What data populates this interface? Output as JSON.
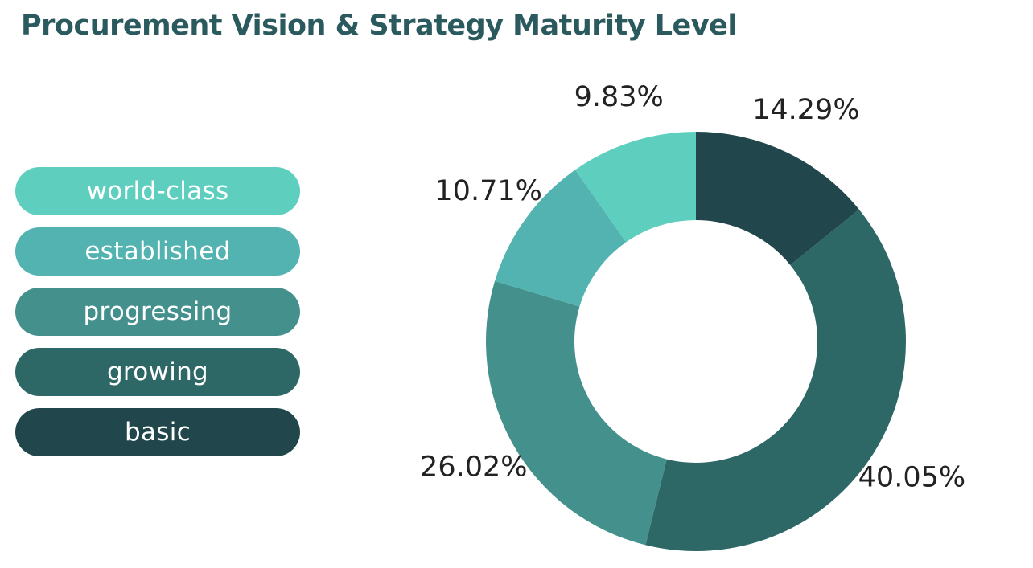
{
  "header": {
    "title": "Procurement Vision & Strategy Maturity Level"
  },
  "chart_data": {
    "type": "pie",
    "variant": "donut",
    "title": "Procurement Vision & Strategy Maturity Level",
    "legend_position": "left",
    "categories": [
      "world-class",
      "established",
      "progressing",
      "growing",
      "basic"
    ],
    "values": [
      9.83,
      10.71,
      26.02,
      40.05,
      14.29
    ],
    "labels": [
      "9.83%",
      "10.71%",
      "26.02%",
      "40.05%",
      "14.29%"
    ],
    "colors": [
      "#5ecfbf",
      "#52b3b1",
      "#43908d",
      "#2d6867",
      "#21474c"
    ],
    "slice_order_clockwise_from_top": [
      "basic",
      "growing",
      "progressing",
      "established",
      "world-class"
    ]
  }
}
